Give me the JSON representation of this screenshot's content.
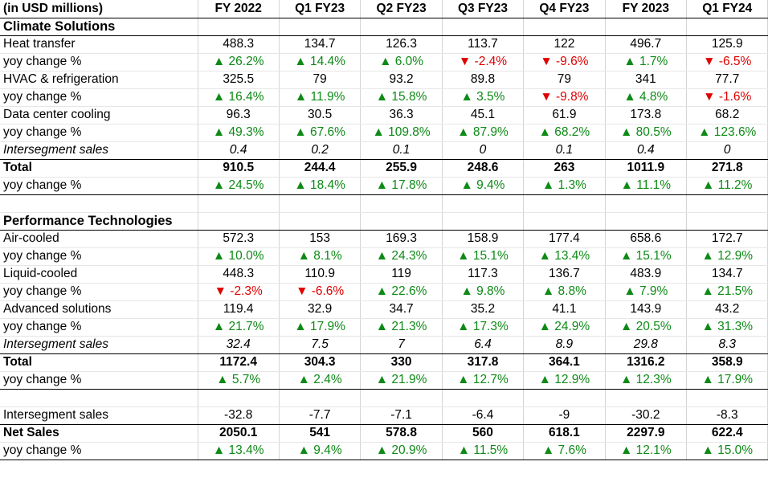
{
  "header": [
    "(in USD millions)",
    "FY 2022",
    "Q1 FY23",
    "Q2 FY23",
    "Q3 FY23",
    "Q4 FY23",
    "FY 2023",
    "Q1 FY24"
  ],
  "rows": [
    {
      "kind": "section",
      "label": "Climate Solutions",
      "values": [
        "",
        "",
        "",
        "",
        "",
        "",
        ""
      ],
      "bb": true
    },
    {
      "kind": "value",
      "label": "Heat transfer",
      "values": [
        "488.3",
        "134.7",
        "126.3",
        "113.7",
        "122",
        "496.7",
        "125.9"
      ]
    },
    {
      "kind": "yoy",
      "label": "yoy change %",
      "values": [
        "▲ 26.2%",
        "▲ 14.4%",
        "▲ 6.0%",
        "▼ -2.4%",
        "▼ -9.6%",
        "▲ 1.7%",
        "▼ -6.5%"
      ],
      "dirs": [
        "up",
        "up",
        "up",
        "down",
        "down",
        "up",
        "down"
      ]
    },
    {
      "kind": "value",
      "label": "HVAC & refrigeration",
      "values": [
        "325.5",
        "79",
        "93.2",
        "89.8",
        "79",
        "341",
        "77.7"
      ]
    },
    {
      "kind": "yoy",
      "label": "yoy change %",
      "values": [
        "▲ 16.4%",
        "▲ 11.9%",
        "▲ 15.8%",
        "▲ 3.5%",
        "▼ -9.8%",
        "▲ 4.8%",
        "▼ -1.6%"
      ],
      "dirs": [
        "up",
        "up",
        "up",
        "up",
        "down",
        "up",
        "down"
      ]
    },
    {
      "kind": "value",
      "label": "Data center cooling",
      "values": [
        "96.3",
        "30.5",
        "36.3",
        "45.1",
        "61.9",
        "173.8",
        "68.2"
      ]
    },
    {
      "kind": "yoy",
      "label": "yoy change %",
      "values": [
        "▲ 49.3%",
        "▲ 67.6%",
        "▲ 109.8%",
        "▲ 87.9%",
        "▲ 68.2%",
        "▲ 80.5%",
        "▲ 123.6%"
      ],
      "dirs": [
        "up",
        "up",
        "up",
        "up",
        "up",
        "up",
        "up"
      ]
    },
    {
      "kind": "italic",
      "label": "Intersegment sales",
      "values": [
        "0.4",
        "0.2",
        "0.1",
        "0",
        "0.1",
        "0.4",
        "0"
      ],
      "bb": true
    },
    {
      "kind": "total",
      "label": "Total",
      "values": [
        "910.5",
        "244.4",
        "255.9",
        "248.6",
        "263",
        "1011.9",
        "271.8"
      ]
    },
    {
      "kind": "yoy",
      "label": "yoy change %",
      "values": [
        "▲ 24.5%",
        "▲ 18.4%",
        "▲ 17.8%",
        "▲ 9.4%",
        "▲ 1.3%",
        "▲ 11.1%",
        "▲ 11.2%"
      ],
      "dirs": [
        "up",
        "up",
        "up",
        "up",
        "up",
        "up",
        "up"
      ],
      "bb": true
    },
    {
      "kind": "spacer",
      "label": "",
      "values": [
        "",
        "",
        "",
        "",
        "",
        "",
        ""
      ]
    },
    {
      "kind": "section",
      "label": "Performance Technologies",
      "values": [
        "",
        "",
        "",
        "",
        "",
        "",
        ""
      ],
      "bb": true
    },
    {
      "kind": "value",
      "label": "Air-cooled",
      "values": [
        "572.3",
        "153",
        "169.3",
        "158.9",
        "177.4",
        "658.6",
        "172.7"
      ]
    },
    {
      "kind": "yoy",
      "label": "yoy change %",
      "values": [
        "▲ 10.0%",
        "▲ 8.1%",
        "▲ 24.3%",
        "▲ 15.1%",
        "▲ 13.4%",
        "▲ 15.1%",
        "▲ 12.9%"
      ],
      "dirs": [
        "up",
        "up",
        "up",
        "up",
        "up",
        "up",
        "up"
      ]
    },
    {
      "kind": "value",
      "label": "Liquid-cooled",
      "values": [
        "448.3",
        "110.9",
        "119",
        "117.3",
        "136.7",
        "483.9",
        "134.7"
      ]
    },
    {
      "kind": "yoy",
      "label": "yoy change %",
      "values": [
        "▼ -2.3%",
        "▼ -6.6%",
        "▲ 22.6%",
        "▲ 9.8%",
        "▲ 8.8%",
        "▲ 7.9%",
        "▲ 21.5%"
      ],
      "dirs": [
        "down",
        "down",
        "up",
        "up",
        "up",
        "up",
        "up"
      ]
    },
    {
      "kind": "value",
      "label": "Advanced solutions",
      "values": [
        "119.4",
        "32.9",
        "34.7",
        "35.2",
        "41.1",
        "143.9",
        "43.2"
      ]
    },
    {
      "kind": "yoy",
      "label": "yoy change %",
      "values": [
        "▲ 21.7%",
        "▲ 17.9%",
        "▲ 21.3%",
        "▲ 17.3%",
        "▲ 24.9%",
        "▲ 20.5%",
        "▲ 31.3%"
      ],
      "dirs": [
        "up",
        "up",
        "up",
        "up",
        "up",
        "up",
        "up"
      ]
    },
    {
      "kind": "italic",
      "label": "Intersegment sales",
      "values": [
        "32.4",
        "7.5",
        "7",
        "6.4",
        "8.9",
        "29.8",
        "8.3"
      ],
      "bb": true
    },
    {
      "kind": "total",
      "label": "Total",
      "values": [
        "1172.4",
        "304.3",
        "330",
        "317.8",
        "364.1",
        "1316.2",
        "358.9"
      ]
    },
    {
      "kind": "yoy",
      "label": "yoy change %",
      "values": [
        "▲ 5.7%",
        "▲ 2.4%",
        "▲ 21.9%",
        "▲ 12.7%",
        "▲ 12.9%",
        "▲ 12.3%",
        "▲ 17.9%"
      ],
      "dirs": [
        "up",
        "up",
        "up",
        "up",
        "up",
        "up",
        "up"
      ],
      "bb": true
    },
    {
      "kind": "spacer",
      "label": "",
      "values": [
        "",
        "",
        "",
        "",
        "",
        "",
        ""
      ]
    },
    {
      "kind": "value",
      "label": "Intersegment sales",
      "values": [
        "-32.8",
        "-7.7",
        "-7.1",
        "-6.4",
        "-9",
        "-30.2",
        "-8.3"
      ],
      "bb": true
    },
    {
      "kind": "total",
      "label": "Net Sales",
      "values": [
        "2050.1",
        "541",
        "578.8",
        "560",
        "618.1",
        "2297.9",
        "622.4"
      ]
    },
    {
      "kind": "yoy",
      "label": "yoy change %",
      "values": [
        "▲ 13.4%",
        "▲ 9.4%",
        "▲ 20.9%",
        "▲ 11.5%",
        "▲ 7.6%",
        "▲ 12.1%",
        "▲ 15.0%"
      ],
      "dirs": [
        "up",
        "up",
        "up",
        "up",
        "up",
        "up",
        "up"
      ],
      "bb": true
    }
  ]
}
